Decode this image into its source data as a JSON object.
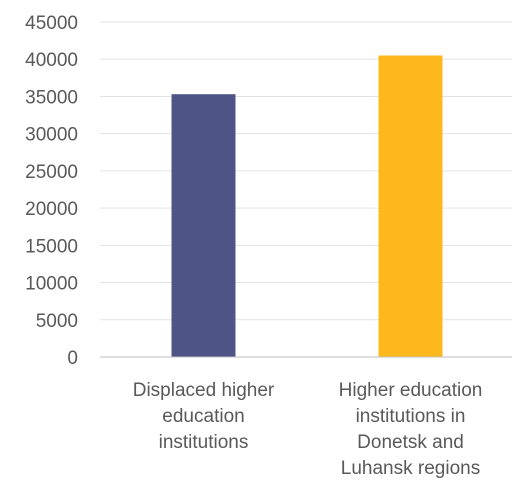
{
  "chart_data": {
    "type": "bar",
    "categories": [
      "Displaced higher education institutions",
      "Higher education institutions in Donetsk and Luhansk regions"
    ],
    "category_lines": [
      [
        "Displaced higher",
        "education",
        "institutions"
      ],
      [
        "Higher education",
        "institutions in",
        "Donetsk and",
        "Luhansk regions"
      ]
    ],
    "values": [
      35300,
      40500
    ],
    "colors": [
      "#4f5486",
      "#ffb81c"
    ],
    "title": "",
    "xlabel": "",
    "ylabel": "",
    "ylim": [
      0,
      45000
    ],
    "yticks": [
      0,
      5000,
      10000,
      15000,
      20000,
      25000,
      30000,
      35000,
      40000,
      45000
    ],
    "grid": true,
    "legend": "none"
  }
}
